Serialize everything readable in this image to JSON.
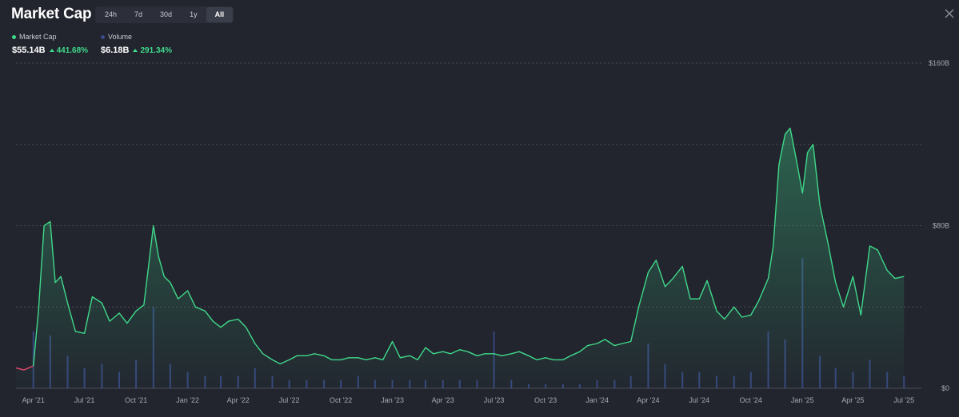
{
  "header": {
    "title": "Market Cap",
    "ranges": [
      "24h",
      "7d",
      "30d",
      "1y",
      "All"
    ],
    "active_range": "All"
  },
  "legend": {
    "market_cap": {
      "label": "Market Cap",
      "value": "$55.14B",
      "change": "441.68%",
      "color": "#3fd98a"
    },
    "volume": {
      "label": "Volume",
      "value": "$6.18B",
      "change": "291.34%",
      "color": "#4a5a9e"
    }
  },
  "colors": {
    "line": "#3fd98a",
    "line_start": "#e5466b",
    "volume_bar": "#3b4b8a",
    "grid": "#4a4d58",
    "background": "#22242e"
  },
  "chart_data": {
    "type": "area",
    "x_unit": "month",
    "x_ticks": [
      {
        "label": "Apr '21",
        "x": "2021-04"
      },
      {
        "label": "Jul '21",
        "x": "2021-07"
      },
      {
        "label": "Oct '21",
        "x": "2021-10"
      },
      {
        "label": "Jan '22",
        "x": "2022-01"
      },
      {
        "label": "Apr '22",
        "x": "2022-04"
      },
      {
        "label": "Jul '22",
        "x": "2022-07"
      },
      {
        "label": "Oct '22",
        "x": "2022-10"
      },
      {
        "label": "Jan '23",
        "x": "2023-01"
      },
      {
        "label": "Apr '23",
        "x": "2023-04"
      },
      {
        "label": "Jul '23",
        "x": "2023-07"
      },
      {
        "label": "Oct '23",
        "x": "2023-10"
      },
      {
        "label": "Jan '24",
        "x": "2024-01"
      },
      {
        "label": "Apr '24",
        "x": "2024-04"
      },
      {
        "label": "Jul '24",
        "x": "2024-07"
      },
      {
        "label": "Oct '24",
        "x": "2024-10"
      },
      {
        "label": "Jan '25",
        "x": "2025-01"
      },
      {
        "label": "Apr '25",
        "x": "2025-04"
      },
      {
        "label": "Jul '25",
        "x": "2025-07"
      }
    ],
    "y_ticks": [
      {
        "label": "$0",
        "value": 0
      },
      {
        "label": "",
        "value": 40
      },
      {
        "label": "$80B",
        "value": 80
      },
      {
        "label": "",
        "value": 120
      },
      {
        "label": "$160B",
        "value": 160
      }
    ],
    "ylim": [
      0,
      160
    ],
    "y_unit": "B USD",
    "grid": true,
    "market_cap_series": {
      "name": "Market Cap",
      "x": [
        "2021-03",
        "2021-03-15",
        "2021-04",
        "2021-04-10",
        "2021-04-20",
        "2021-05",
        "2021-05-10",
        "2021-05-20",
        "2021-06",
        "2021-06-15",
        "2021-07",
        "2021-07-15",
        "2021-08",
        "2021-08-15",
        "2021-09",
        "2021-09-15",
        "2021-10",
        "2021-10-15",
        "2021-11",
        "2021-11-10",
        "2021-11-20",
        "2021-12",
        "2021-12-15",
        "2022-01",
        "2022-01-15",
        "2022-02",
        "2022-02-15",
        "2022-03",
        "2022-03-15",
        "2022-04",
        "2022-04-15",
        "2022-05",
        "2022-05-15",
        "2022-06",
        "2022-06-15",
        "2022-07",
        "2022-07-15",
        "2022-08",
        "2022-08-15",
        "2022-09",
        "2022-09-15",
        "2022-10",
        "2022-10-15",
        "2022-11",
        "2022-11-15",
        "2022-12",
        "2022-12-15",
        "2023-01",
        "2023-01-15",
        "2023-02",
        "2023-02-15",
        "2023-03",
        "2023-03-15",
        "2023-04",
        "2023-04-15",
        "2023-05",
        "2023-05-15",
        "2023-06",
        "2023-06-15",
        "2023-07",
        "2023-07-15",
        "2023-08",
        "2023-08-15",
        "2023-09",
        "2023-09-15",
        "2023-10",
        "2023-10-15",
        "2023-11",
        "2023-11-15",
        "2023-12",
        "2023-12-15",
        "2024-01",
        "2024-01-15",
        "2024-02",
        "2024-02-15",
        "2024-03",
        "2024-03-15",
        "2024-04",
        "2024-04-15",
        "2024-05",
        "2024-05-15",
        "2024-06",
        "2024-06-15",
        "2024-07",
        "2024-07-15",
        "2024-08",
        "2024-08-15",
        "2024-09",
        "2024-09-15",
        "2024-10",
        "2024-10-15",
        "2024-11",
        "2024-11-10",
        "2024-11-20",
        "2024-12",
        "2024-12-10",
        "2024-12-20",
        "2025-01",
        "2025-01-10",
        "2025-01-20",
        "2025-02",
        "2025-02-15",
        "2025-03",
        "2025-03-15",
        "2025-04",
        "2025-04-15",
        "2025-05",
        "2025-05-15",
        "2025-06",
        "2025-06-15",
        "2025-07"
      ],
      "values": [
        10,
        9,
        11,
        38,
        80,
        82,
        52,
        55,
        42,
        28,
        27,
        45,
        42,
        33,
        37,
        32,
        38,
        41,
        80,
        65,
        55,
        52,
        44,
        48,
        40,
        38,
        33,
        30,
        33,
        34,
        30,
        22,
        17,
        14,
        12,
        14,
        16,
        16,
        17,
        16,
        14,
        14,
        15,
        15,
        14,
        15,
        14,
        23,
        15,
        16,
        14,
        20,
        17,
        18,
        17,
        19,
        18,
        16,
        17,
        17,
        16,
        17,
        18,
        16,
        14,
        15,
        14,
        14,
        16,
        18,
        21,
        22,
        24,
        21,
        22,
        23,
        40,
        57,
        63,
        50,
        54,
        60,
        44,
        44,
        53,
        38,
        34,
        40,
        35,
        36,
        43,
        54,
        70,
        110,
        125,
        128,
        114,
        96,
        116,
        120,
        90,
        72,
        52,
        40,
        55,
        36,
        70,
        68,
        58,
        54,
        55
      ]
    },
    "volume_series": {
      "name": "Volume",
      "x": [
        "2021-04",
        "2021-05",
        "2021-06",
        "2021-07",
        "2021-08",
        "2021-09",
        "2021-10",
        "2021-11",
        "2021-12",
        "2022-01",
        "2022-02",
        "2022-03",
        "2022-04",
        "2022-05",
        "2022-06",
        "2022-07",
        "2022-08",
        "2022-09",
        "2022-10",
        "2022-11",
        "2022-12",
        "2023-01",
        "2023-02",
        "2023-03",
        "2023-04",
        "2023-05",
        "2023-06",
        "2023-07",
        "2023-08",
        "2023-09",
        "2023-10",
        "2023-11",
        "2023-12",
        "2024-01",
        "2024-02",
        "2024-03",
        "2024-04",
        "2024-05",
        "2024-06",
        "2024-07",
        "2024-08",
        "2024-09",
        "2024-10",
        "2024-11",
        "2024-12",
        "2025-01",
        "2025-02",
        "2025-03",
        "2025-04",
        "2025-05",
        "2025-06",
        "2025-07"
      ],
      "values": [
        14,
        13,
        8,
        5,
        6,
        4,
        7,
        20,
        6,
        4,
        3,
        3,
        3,
        5,
        3,
        2,
        2,
        2,
        2,
        3,
        2,
        2,
        2,
        2,
        2,
        2,
        2,
        14,
        2,
        1,
        1,
        1,
        1,
        2,
        2,
        3,
        11,
        6,
        4,
        4,
        3,
        3,
        4,
        14,
        12,
        32,
        8,
        5,
        4,
        7,
        4,
        3
      ]
    }
  }
}
